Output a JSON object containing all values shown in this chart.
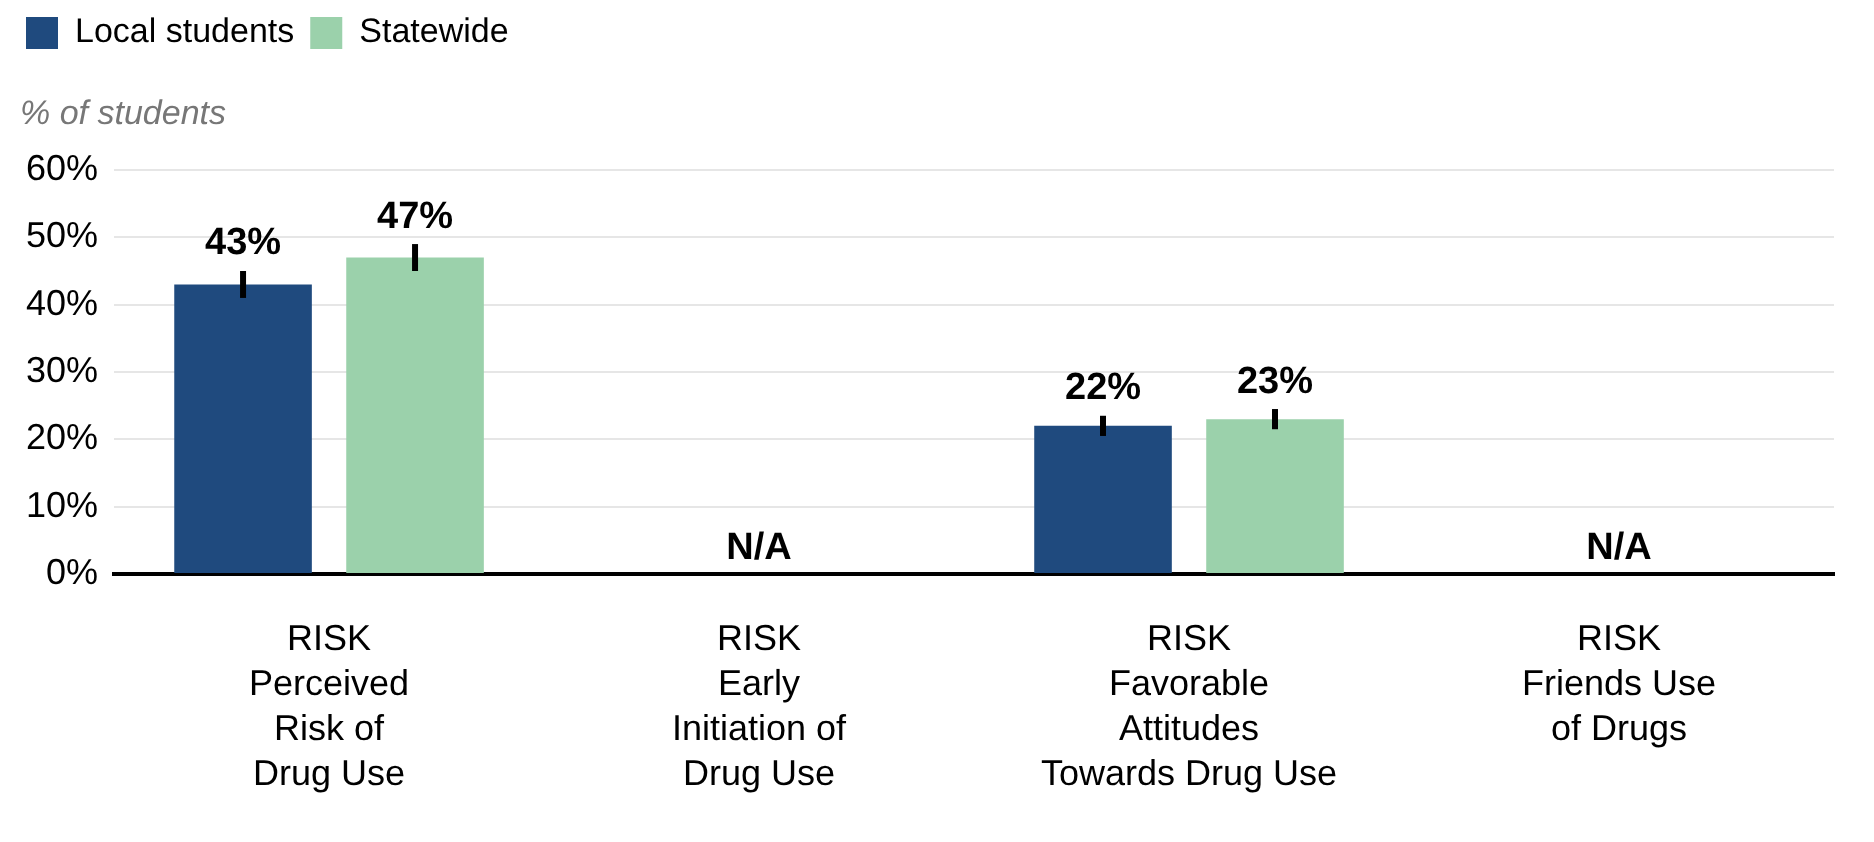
{
  "chart_data": {
    "type": "bar",
    "ylabel": "% of students",
    "categories": [
      "RISK\nPerceived\nRisk of\nDrug Use",
      "RISK\nEarly\nInitiation of\nDrug Use",
      "RISK\nFavorable\nAttitudes\nTowards Drug Use",
      "RISK\nFriends Use\nof Drugs"
    ],
    "series": [
      {
        "name": "Local students",
        "color": "#1f4a7e",
        "values": [
          43,
          null,
          22,
          null
        ],
        "errors": [
          2,
          null,
          1.5,
          null
        ],
        "value_labels": [
          "43%",
          "N/A",
          "22%",
          "N/A"
        ]
      },
      {
        "name": "Statewide",
        "color": "#9bd1ab",
        "values": [
          47,
          null,
          23,
          null
        ],
        "errors": [
          2,
          null,
          1.5,
          null
        ],
        "value_labels": [
          "47%",
          null,
          "23%",
          null
        ]
      }
    ],
    "ylim": [
      0,
      60
    ],
    "yticks": [
      {
        "value": 0,
        "label": "0%"
      },
      {
        "value": 10,
        "label": "10%"
      },
      {
        "value": 20,
        "label": "20%"
      },
      {
        "value": 30,
        "label": "30%"
      },
      {
        "value": 40,
        "label": "40%"
      },
      {
        "value": 50,
        "label": "50%"
      },
      {
        "value": 60,
        "label": "60%"
      }
    ],
    "grid": "y",
    "legend": "top left"
  }
}
